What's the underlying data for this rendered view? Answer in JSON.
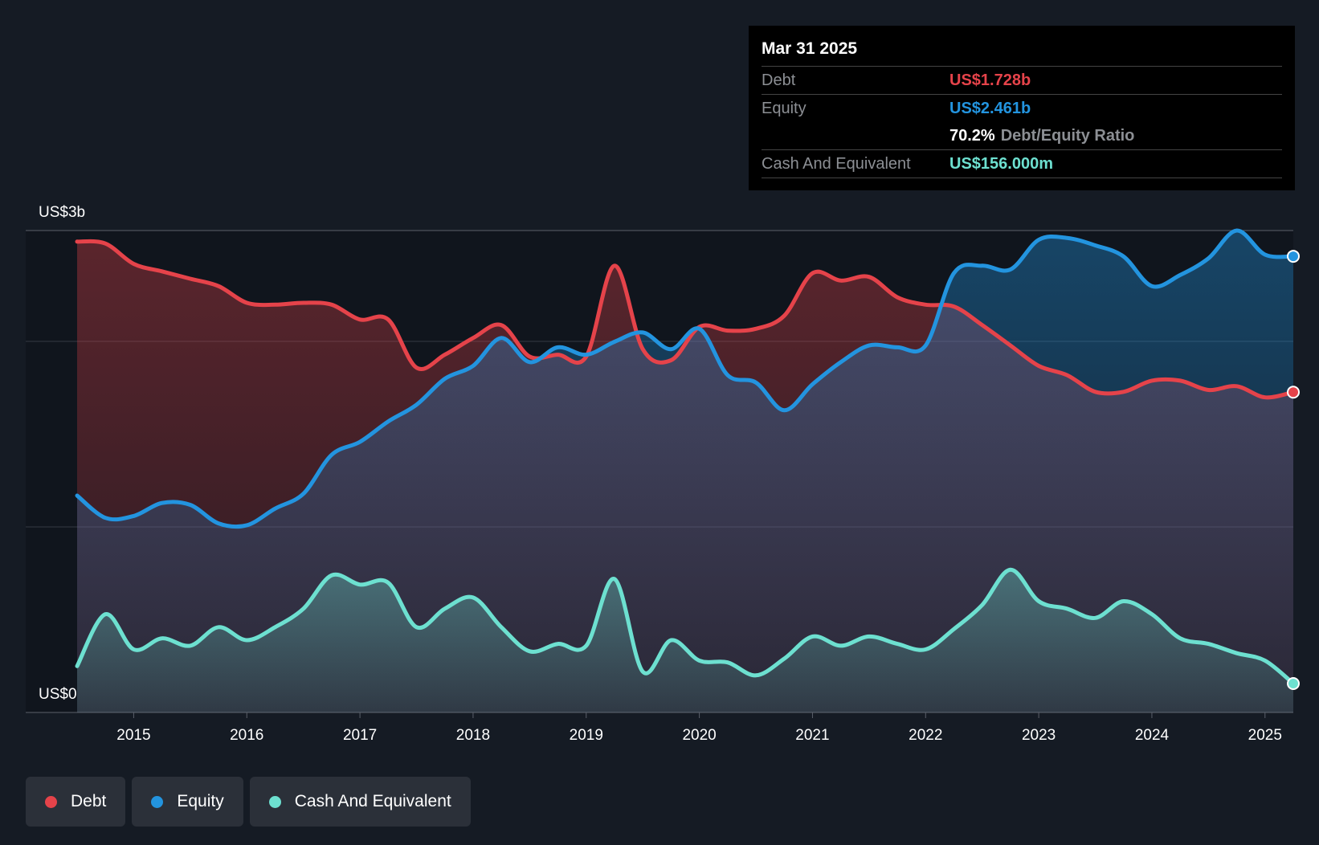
{
  "tooltip": {
    "date": "Mar 31 2025",
    "debt_label": "Debt",
    "debt_value": "US$1.728b",
    "equity_label": "Equity",
    "equity_value": "US$2.461b",
    "ratio_value": "70.2%",
    "ratio_label": "Debt/Equity Ratio",
    "cash_label": "Cash And Equivalent",
    "cash_value": "US$156.000m"
  },
  "legend": {
    "debt": "Debt",
    "equity": "Equity",
    "cash": "Cash And Equivalent"
  },
  "colors": {
    "debt": "#e5434a",
    "equity": "#2394df",
    "cash": "#6de0d0",
    "background": "#151b24"
  },
  "chart_data": {
    "type": "area",
    "title": "",
    "y_max_label": "US$3b",
    "y_min_label": "US$0",
    "ylim": [
      0,
      2.6
    ],
    "xlim": [
      2014.5,
      2025.25
    ],
    "x_ticks": [
      "2015",
      "2016",
      "2017",
      "2018",
      "2019",
      "2020",
      "2021",
      "2022",
      "2023",
      "2024",
      "2025"
    ],
    "series": [
      {
        "name": "Debt",
        "points": [
          [
            2014.5,
            2.54
          ],
          [
            2014.75,
            2.53
          ],
          [
            2015.0,
            2.42
          ],
          [
            2015.25,
            2.38
          ],
          [
            2015.5,
            2.34
          ],
          [
            2015.75,
            2.3
          ],
          [
            2016.0,
            2.21
          ],
          [
            2016.25,
            2.2
          ],
          [
            2016.5,
            2.21
          ],
          [
            2016.75,
            2.2
          ],
          [
            2017.0,
            2.12
          ],
          [
            2017.25,
            2.12
          ],
          [
            2017.5,
            1.86
          ],
          [
            2017.75,
            1.93
          ],
          [
            2018.0,
            2.02
          ],
          [
            2018.25,
            2.09
          ],
          [
            2018.5,
            1.92
          ],
          [
            2018.75,
            1.93
          ],
          [
            2019.0,
            1.92
          ],
          [
            2019.25,
            2.41
          ],
          [
            2019.5,
            1.96
          ],
          [
            2019.75,
            1.9
          ],
          [
            2020.0,
            2.08
          ],
          [
            2020.25,
            2.06
          ],
          [
            2020.5,
            2.07
          ],
          [
            2020.75,
            2.14
          ],
          [
            2021.0,
            2.37
          ],
          [
            2021.25,
            2.33
          ],
          [
            2021.5,
            2.35
          ],
          [
            2021.75,
            2.24
          ],
          [
            2022.0,
            2.2
          ],
          [
            2022.25,
            2.19
          ],
          [
            2022.5,
            2.09
          ],
          [
            2022.75,
            1.98
          ],
          [
            2023.0,
            1.87
          ],
          [
            2023.25,
            1.82
          ],
          [
            2023.5,
            1.73
          ],
          [
            2023.75,
            1.73
          ],
          [
            2024.0,
            1.79
          ],
          [
            2024.25,
            1.79
          ],
          [
            2024.5,
            1.74
          ],
          [
            2024.75,
            1.76
          ],
          [
            2025.0,
            1.7
          ],
          [
            2025.25,
            1.728
          ]
        ]
      },
      {
        "name": "Equity",
        "points": [
          [
            2014.5,
            1.17
          ],
          [
            2014.75,
            1.05
          ],
          [
            2015.0,
            1.06
          ],
          [
            2015.25,
            1.13
          ],
          [
            2015.5,
            1.12
          ],
          [
            2015.75,
            1.02
          ],
          [
            2016.0,
            1.01
          ],
          [
            2016.25,
            1.1
          ],
          [
            2016.5,
            1.18
          ],
          [
            2016.75,
            1.39
          ],
          [
            2017.0,
            1.46
          ],
          [
            2017.25,
            1.57
          ],
          [
            2017.5,
            1.66
          ],
          [
            2017.75,
            1.8
          ],
          [
            2018.0,
            1.87
          ],
          [
            2018.25,
            2.02
          ],
          [
            2018.5,
            1.89
          ],
          [
            2018.75,
            1.97
          ],
          [
            2019.0,
            1.93
          ],
          [
            2019.25,
            2.0
          ],
          [
            2019.5,
            2.05
          ],
          [
            2019.75,
            1.96
          ],
          [
            2020.0,
            2.07
          ],
          [
            2020.25,
            1.82
          ],
          [
            2020.5,
            1.78
          ],
          [
            2020.75,
            1.63
          ],
          [
            2021.0,
            1.77
          ],
          [
            2021.25,
            1.89
          ],
          [
            2021.5,
            1.98
          ],
          [
            2021.75,
            1.97
          ],
          [
            2022.0,
            1.98
          ],
          [
            2022.25,
            2.37
          ],
          [
            2022.5,
            2.41
          ],
          [
            2022.75,
            2.39
          ],
          [
            2023.0,
            2.55
          ],
          [
            2023.25,
            2.56
          ],
          [
            2023.5,
            2.52
          ],
          [
            2023.75,
            2.46
          ],
          [
            2024.0,
            2.3
          ],
          [
            2024.25,
            2.36
          ],
          [
            2024.5,
            2.45
          ],
          [
            2024.75,
            2.6
          ],
          [
            2025.0,
            2.47
          ],
          [
            2025.25,
            2.461
          ]
        ]
      },
      {
        "name": "Cash And Equivalent",
        "points": [
          [
            2014.5,
            0.25
          ],
          [
            2014.75,
            0.53
          ],
          [
            2015.0,
            0.34
          ],
          [
            2015.25,
            0.4
          ],
          [
            2015.5,
            0.36
          ],
          [
            2015.75,
            0.46
          ],
          [
            2016.0,
            0.39
          ],
          [
            2016.25,
            0.46
          ],
          [
            2016.5,
            0.56
          ],
          [
            2016.75,
            0.74
          ],
          [
            2017.0,
            0.69
          ],
          [
            2017.25,
            0.7
          ],
          [
            2017.5,
            0.46
          ],
          [
            2017.75,
            0.56
          ],
          [
            2018.0,
            0.62
          ],
          [
            2018.25,
            0.46
          ],
          [
            2018.5,
            0.33
          ],
          [
            2018.75,
            0.37
          ],
          [
            2019.0,
            0.36
          ],
          [
            2019.25,
            0.72
          ],
          [
            2019.5,
            0.22
          ],
          [
            2019.75,
            0.39
          ],
          [
            2020.0,
            0.28
          ],
          [
            2020.25,
            0.27
          ],
          [
            2020.5,
            0.2
          ],
          [
            2020.75,
            0.29
          ],
          [
            2021.0,
            0.41
          ],
          [
            2021.25,
            0.36
          ],
          [
            2021.5,
            0.41
          ],
          [
            2021.75,
            0.37
          ],
          [
            2022.0,
            0.34
          ],
          [
            2022.25,
            0.45
          ],
          [
            2022.5,
            0.58
          ],
          [
            2022.75,
            0.77
          ],
          [
            2023.0,
            0.6
          ],
          [
            2023.25,
            0.56
          ],
          [
            2023.5,
            0.51
          ],
          [
            2023.75,
            0.6
          ],
          [
            2024.0,
            0.53
          ],
          [
            2024.25,
            0.4
          ],
          [
            2024.5,
            0.37
          ],
          [
            2024.75,
            0.32
          ],
          [
            2025.0,
            0.28
          ],
          [
            2025.25,
            0.156
          ]
        ]
      }
    ]
  }
}
